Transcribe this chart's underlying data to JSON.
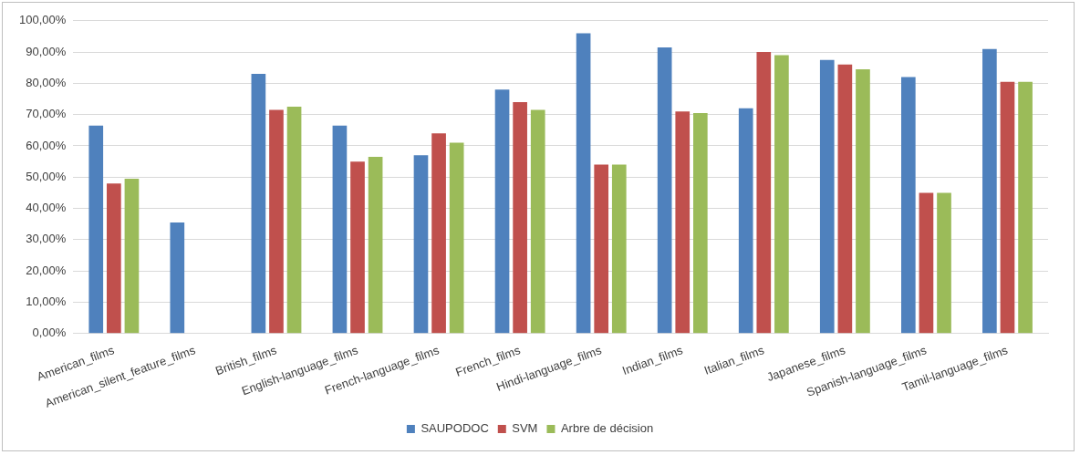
{
  "chart_data": {
    "type": "bar",
    "categories": [
      "American_films",
      "American_silent_feature_films",
      "British_films",
      "English-language_films",
      "French-language_films",
      "French_films",
      "Hindi-language_films",
      "Indian_films",
      "Italian_films",
      "Japanese_films",
      "Spanish-language_films",
      "Tamil-language_films"
    ],
    "series": [
      {
        "name": "SAUPODOC",
        "color": "#4f81bd",
        "values": [
          66.5,
          35.5,
          83,
          66.5,
          57,
          78,
          96,
          91.5,
          72,
          87.5,
          82,
          91
        ]
      },
      {
        "name": "SVM",
        "color": "#c0504d",
        "values": [
          48,
          null,
          71.5,
          55,
          64,
          74,
          54,
          71,
          90,
          86,
          45,
          80.5
        ]
      },
      {
        "name": "Arbre de décision",
        "color": "#9bbb59",
        "values": [
          49.5,
          null,
          72.5,
          56.5,
          61,
          71.5,
          54,
          70.5,
          89,
          84.5,
          45,
          80.5
        ]
      }
    ],
    "ylim": [
      0,
      100
    ],
    "yticks": [
      {
        "value": 0,
        "label": "0,00%"
      },
      {
        "value": 10,
        "label": "10,00%"
      },
      {
        "value": 20,
        "label": "20,00%"
      },
      {
        "value": 30,
        "label": "30,00%"
      },
      {
        "value": 40,
        "label": "40,00%"
      },
      {
        "value": 50,
        "label": "50,00%"
      },
      {
        "value": 60,
        "label": "60,00%"
      },
      {
        "value": 70,
        "label": "70,00%"
      },
      {
        "value": 80,
        "label": "80,00%"
      },
      {
        "value": 90,
        "label": "90,00%"
      },
      {
        "value": 100,
        "label": "100,00%"
      }
    ],
    "grid": "y",
    "legend": "bottom"
  }
}
